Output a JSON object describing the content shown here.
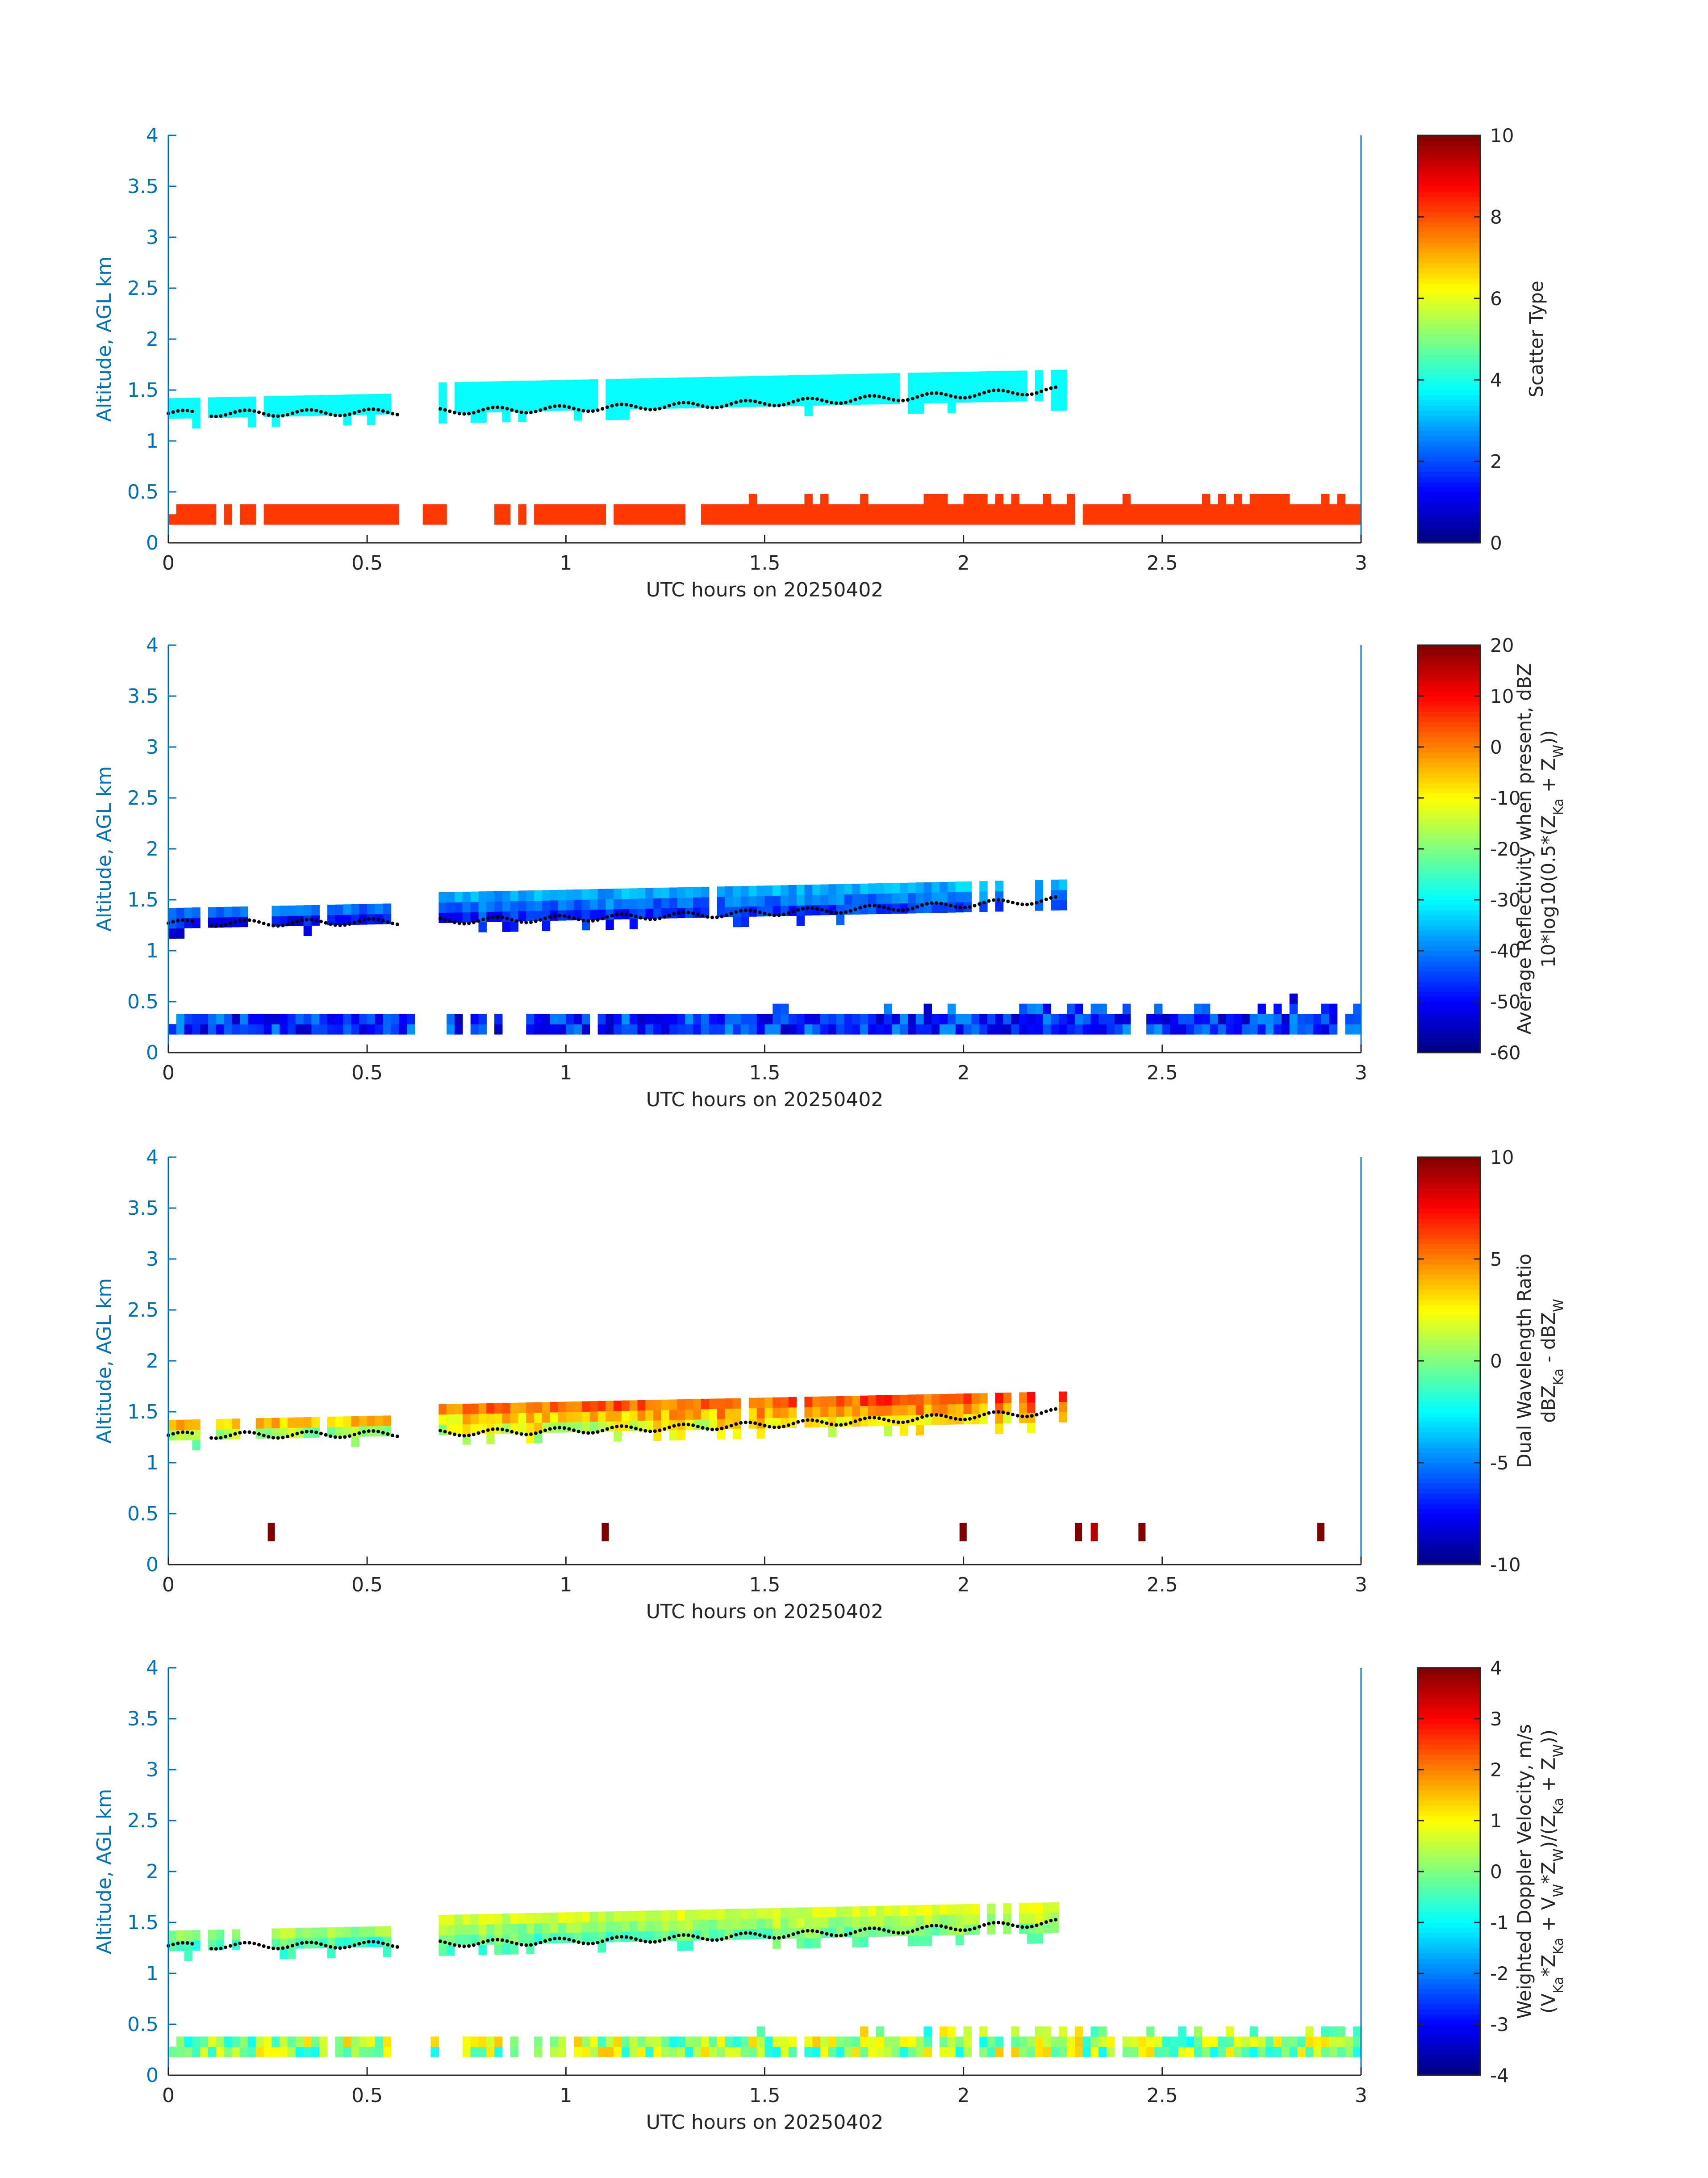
{
  "figure": {
    "background": "#ffffff",
    "axis_color": "#0072bd",
    "text_color": "#262626"
  },
  "chart_data": [
    {
      "type": "heatmap",
      "id": "scatter-type",
      "colormap": "jet",
      "xlabel": "UTC hours on 20250402",
      "ylabel": "Altitude, AGL km",
      "xlim": [
        0,
        3
      ],
      "ylim": [
        0,
        4
      ],
      "xticks": [
        "0",
        "0.5",
        "1",
        "1.5",
        "2",
        "2.5",
        "3"
      ],
      "yticks": [
        "0",
        "0.5",
        "1",
        "1.5",
        "2",
        "2.5",
        "3",
        "3.5",
        "4"
      ],
      "colorbar": {
        "label_lines": [
          "Scatter Type"
        ],
        "clim": [
          0,
          10
        ],
        "ticks": [
          "0",
          "2",
          "4",
          "6",
          "8",
          "10"
        ]
      },
      "layers": {
        "cloud": {
          "value": 3.8,
          "x": [
            0,
            2.25
          ],
          "ybase": [
            1.22,
            1.4
          ],
          "ytop": [
            1.4,
            1.7
          ]
        },
        "ground_clutter": {
          "value": 8.2,
          "x": [
            0,
            3
          ],
          "ybase": [
            0.18,
            0.18
          ],
          "ytop": [
            0.28,
            0.5
          ]
        }
      },
      "melting_layer": {
        "x": [
          0,
          2.24
        ],
        "y": [
          1.27,
          1.5
        ]
      }
    },
    {
      "type": "heatmap",
      "id": "reflectivity",
      "colormap": "jet",
      "xlabel": "UTC hours on 20250402",
      "ylabel": "Altitude, AGL km",
      "xlim": [
        0,
        3
      ],
      "ylim": [
        0,
        4
      ],
      "xticks": [
        "0",
        "0.5",
        "1",
        "1.5",
        "2",
        "2.5",
        "3"
      ],
      "yticks": [
        "0",
        "0.5",
        "1",
        "1.5",
        "2",
        "2.5",
        "3",
        "3.5",
        "4"
      ],
      "colorbar": {
        "label_lines": [
          "Average Reflectivity when present, dBZ",
          "10*log10(0.5*(Z_Ka + Z_W))"
        ],
        "clim": [
          -60,
          20
        ],
        "ticks": [
          "-60",
          "-50",
          "-40",
          "-30",
          "-20",
          "-10",
          "0",
          "10",
          "20"
        ]
      },
      "layers": {
        "cloud": {
          "value_range": [
            -55,
            -30
          ],
          "x": [
            0,
            2.25
          ],
          "ybase": [
            1.22,
            1.4
          ],
          "ytop": [
            1.4,
            1.7
          ]
        },
        "ground_clutter": {
          "value_range": [
            -55,
            -38
          ],
          "x": [
            0,
            3
          ],
          "ybase": [
            0.18,
            0.18
          ],
          "ytop": [
            0.28,
            0.5
          ]
        }
      },
      "melting_layer": {
        "x": [
          0,
          2.24
        ],
        "y": [
          1.27,
          1.5
        ]
      }
    },
    {
      "type": "heatmap",
      "id": "dwr",
      "colormap": "jet",
      "xlabel": "UTC hours on 20250402",
      "ylabel": "Altitude, AGL km",
      "xlim": [
        0,
        3
      ],
      "ylim": [
        0,
        4
      ],
      "xticks": [
        "0",
        "0.5",
        "1",
        "1.5",
        "2",
        "2.5",
        "3"
      ],
      "yticks": [
        "0",
        "0.5",
        "1",
        "1.5",
        "2",
        "2.5",
        "3",
        "3.5",
        "4"
      ],
      "colorbar": {
        "label_lines": [
          "Dual Wavelength Ratio",
          "dBZ_Ka - dBZ_W"
        ],
        "clim": [
          -10,
          10
        ],
        "ticks": [
          "-10",
          "-5",
          "0",
          "5",
          "10"
        ]
      },
      "layers": {
        "cloud": {
          "value_range": [
            -1,
            8
          ],
          "x": [
            0,
            2.25
          ],
          "ybase": [
            1.22,
            1.4
          ],
          "ytop": [
            1.4,
            1.7
          ]
        },
        "ground_spots": [
          {
            "x": 0.25,
            "value": 10
          },
          {
            "x": 1.09,
            "value": 10
          },
          {
            "x": 1.99,
            "value": 10
          },
          {
            "x": 2.28,
            "value": 10
          },
          {
            "x": 2.32,
            "value": 9
          },
          {
            "x": 2.44,
            "value": 10
          },
          {
            "x": 2.89,
            "value": 10
          }
        ]
      },
      "melting_layer": {
        "x": [
          0,
          2.24
        ],
        "y": [
          1.27,
          1.5
        ]
      }
    },
    {
      "type": "heatmap",
      "id": "doppler",
      "colormap": "jet",
      "xlabel": "UTC hours on 20250402",
      "ylabel": "Altitude, AGL km",
      "xlim": [
        0,
        3
      ],
      "ylim": [
        0,
        4
      ],
      "xticks": [
        "0",
        "0.5",
        "1",
        "1.5",
        "2",
        "2.5",
        "3"
      ],
      "yticks": [
        "0",
        "0.5",
        "1",
        "1.5",
        "2",
        "2.5",
        "3",
        "3.5",
        "4"
      ],
      "colorbar": {
        "label_lines": [
          "Weighted Doppler Velocity, m/s",
          "(V_Ka*Z_Ka + V_W*Z_W)/(Z_Ka + Z_W))"
        ],
        "clim": [
          -4,
          4
        ],
        "ticks": [
          "-4",
          "-3",
          "-2",
          "-1",
          "0",
          "1",
          "2",
          "3",
          "4"
        ]
      },
      "layers": {
        "cloud": {
          "value_range": [
            -1,
            1.2
          ],
          "x": [
            0,
            2.25
          ],
          "ybase": [
            1.22,
            1.4
          ],
          "ytop": [
            1.4,
            1.7
          ]
        },
        "ground_clutter": {
          "value_range": [
            -1,
            1.5
          ],
          "x": [
            0,
            3
          ],
          "ybase": [
            0.18,
            0.18
          ],
          "ytop": [
            0.28,
            0.5
          ]
        }
      },
      "melting_layer": {
        "x": [
          0,
          2.24
        ],
        "y": [
          1.27,
          1.5
        ]
      }
    }
  ]
}
